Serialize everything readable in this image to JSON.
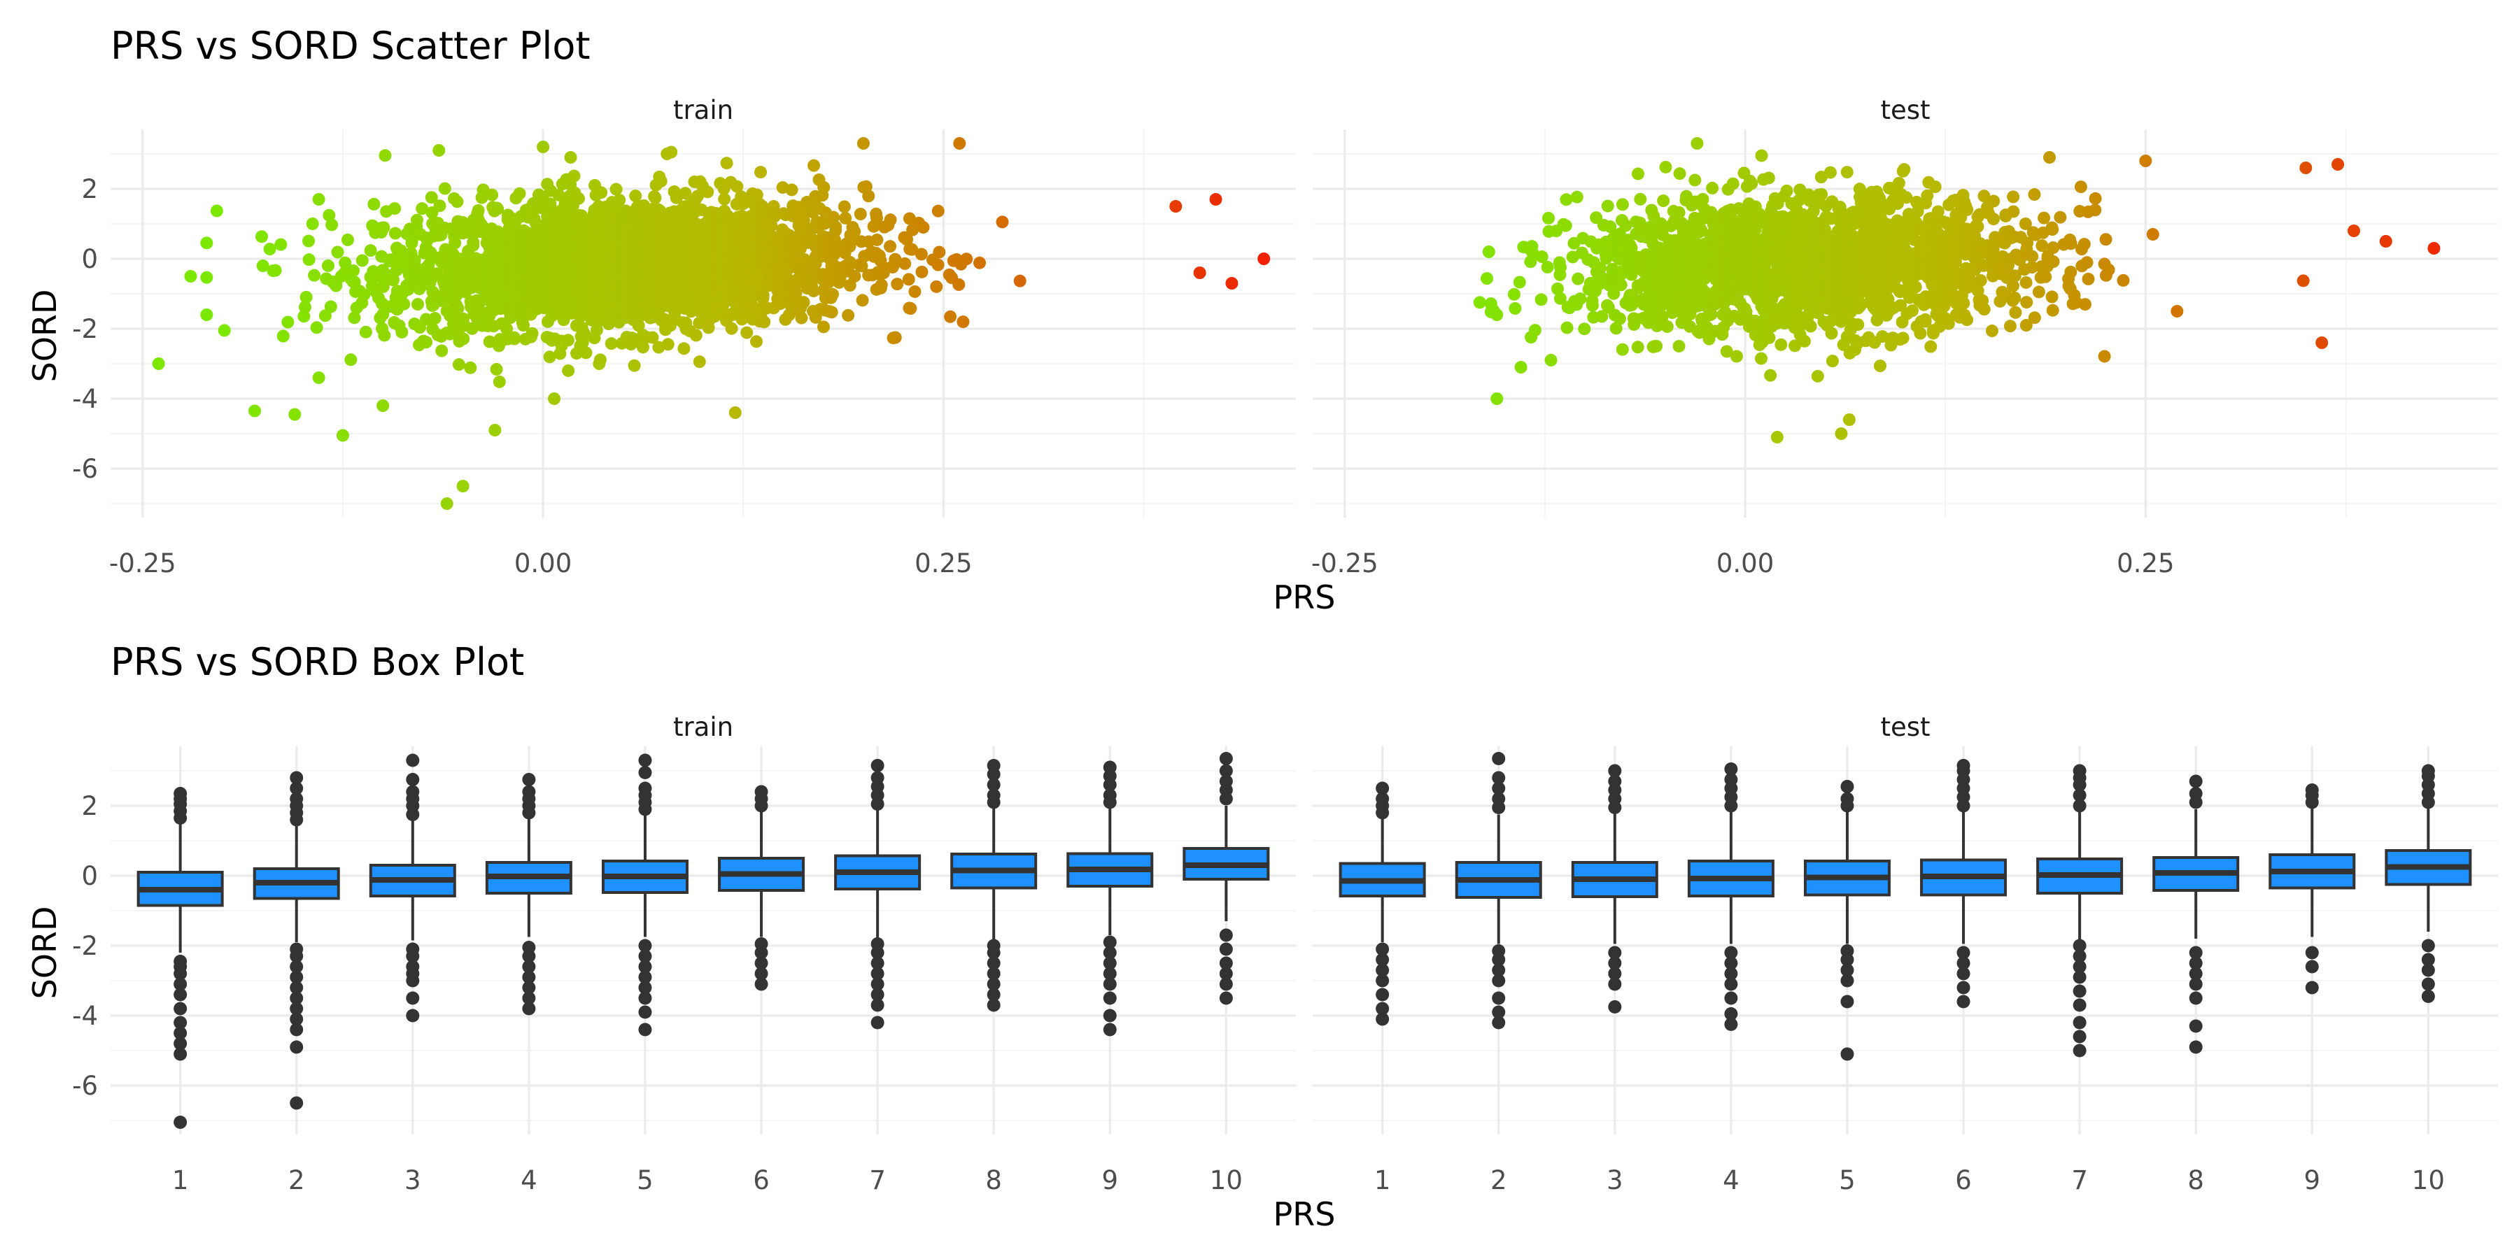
{
  "chart_data": [
    {
      "type": "scatter",
      "title": "PRS vs SORD Scatter Plot",
      "xlabel": "PRS",
      "ylabel": "SORD",
      "xlim": [
        -0.27,
        0.47
      ],
      "ylim": [
        -7.4,
        3.7
      ],
      "x_ticks": [
        "-0.25",
        "0.00",
        "0.25"
      ],
      "x_tick_values": [
        -0.25,
        0.0,
        0.25
      ],
      "y_ticks": [
        "-6",
        "-4",
        "-2",
        "0",
        "2"
      ],
      "y_tick_values": [
        -6,
        -4,
        -2,
        0,
        2
      ],
      "grid": true,
      "color_scale": {
        "low": "#7CE800",
        "mid": "#B8B800",
        "high": "#F02000",
        "range": [
          -0.2,
          0.45
        ]
      },
      "facets": [
        {
          "name": "train",
          "cloud": {
            "x_center": 0.05,
            "x_spread": 0.075,
            "slope": 2.1,
            "y_spread": 0.95,
            "n": 2600
          },
          "points": [
            {
              "x": 0.45,
              "y": 0.0
            },
            {
              "x": 0.42,
              "y": 1.7
            },
            {
              "x": 0.43,
              "y": -0.7
            },
            {
              "x": 0.41,
              "y": -0.4
            },
            {
              "x": 0.395,
              "y": 1.5
            },
            {
              "x": -0.24,
              "y": -3.0
            },
            {
              "x": -0.22,
              "y": -0.5
            },
            {
              "x": -0.21,
              "y": -1.6
            },
            {
              "x": -0.18,
              "y": -4.35
            },
            {
              "x": -0.155,
              "y": -4.45
            },
            {
              "x": -0.125,
              "y": -5.05
            },
            {
              "x": -0.06,
              "y": -7.0
            },
            {
              "x": -0.05,
              "y": -6.5
            },
            {
              "x": -0.03,
              "y": -4.9
            },
            {
              "x": 0.2,
              "y": 3.3
            },
            {
              "x": 0.26,
              "y": 3.3
            },
            {
              "x": 0.12,
              "y": -4.4
            },
            {
              "x": 0.0,
              "y": 3.2
            },
            {
              "x": -0.065,
              "y": 3.1
            },
            {
              "x": 0.08,
              "y": 3.05
            },
            {
              "x": -0.14,
              "y": 1.7
            },
            {
              "x": -0.14,
              "y": -3.4
            },
            {
              "x": -0.1,
              "y": -4.2
            }
          ]
        },
        {
          "name": "test",
          "cloud": {
            "x_center": 0.04,
            "x_spread": 0.072,
            "slope": 1.4,
            "y_spread": 0.95,
            "n": 1900
          },
          "points": [
            {
              "x": 0.43,
              "y": 0.3
            },
            {
              "x": 0.37,
              "y": 2.7
            },
            {
              "x": 0.35,
              "y": 2.6
            },
            {
              "x": 0.38,
              "y": 0.8
            },
            {
              "x": 0.36,
              "y": -2.4
            },
            {
              "x": 0.4,
              "y": 0.5
            },
            {
              "x": -0.155,
              "y": -4.0
            },
            {
              "x": 0.02,
              "y": -5.1
            },
            {
              "x": 0.06,
              "y": -5.0
            },
            {
              "x": 0.065,
              "y": -4.6
            },
            {
              "x": -0.03,
              "y": 3.3
            },
            {
              "x": 0.19,
              "y": 2.9
            },
            {
              "x": 0.25,
              "y": 2.8
            },
            {
              "x": -0.155,
              "y": -1.6
            },
            {
              "x": -0.14,
              "y": -3.1
            },
            {
              "x": -0.16,
              "y": 0.2
            }
          ]
        }
      ]
    },
    {
      "type": "box",
      "title": "PRS vs SORD Box Plot",
      "xlabel": "PRS",
      "ylabel": "SORD",
      "categories": [
        "1",
        "2",
        "3",
        "4",
        "5",
        "6",
        "7",
        "8",
        "9",
        "10"
      ],
      "ylim": [
        -7.4,
        3.7
      ],
      "y_ticks": [
        "-6",
        "-4",
        "-2",
        "0",
        "2"
      ],
      "y_tick_values": [
        -6,
        -4,
        -2,
        0,
        2
      ],
      "grid": true,
      "box_color": "#1E90FF",
      "facets": [
        {
          "name": "train",
          "boxes": [
            {
              "q1": -0.85,
              "median": -0.4,
              "q3": 0.1,
              "low": -2.2,
              "high": 1.5
            },
            {
              "q1": -0.65,
              "median": -0.2,
              "q3": 0.2,
              "low": -1.9,
              "high": 1.45
            },
            {
              "q1": -0.58,
              "median": -0.12,
              "q3": 0.3,
              "low": -1.85,
              "high": 1.6
            },
            {
              "q1": -0.5,
              "median": -0.02,
              "q3": 0.38,
              "low": -1.75,
              "high": 1.65
            },
            {
              "q1": -0.48,
              "median": -0.02,
              "q3": 0.42,
              "low": -1.75,
              "high": 1.75
            },
            {
              "q1": -0.42,
              "median": 0.05,
              "q3": 0.5,
              "low": -1.75,
              "high": 1.85
            },
            {
              "q1": -0.38,
              "median": 0.1,
              "q3": 0.57,
              "low": -1.8,
              "high": 1.9
            },
            {
              "q1": -0.35,
              "median": 0.15,
              "q3": 0.62,
              "low": -1.85,
              "high": 1.95
            },
            {
              "q1": -0.3,
              "median": 0.18,
              "q3": 0.63,
              "low": -1.7,
              "high": 1.95
            },
            {
              "q1": -0.1,
              "median": 0.3,
              "q3": 0.78,
              "low": -1.3,
              "high": 2.0
            }
          ],
          "outliers": [
            [
              -7.05,
              -5.1,
              -4.8,
              -4.5,
              -4.2,
              -3.8,
              -3.4,
              -3.1,
              -2.8,
              -2.6,
              -2.45,
              1.65,
              1.85,
              2.05,
              2.2,
              2.35
            ],
            [
              -6.5,
              -4.9,
              -4.4,
              -4.1,
              -3.8,
              -3.5,
              -3.2,
              -2.9,
              -2.6,
              -2.3,
              -2.1,
              1.6,
              1.8,
              2.0,
              2.2,
              2.5,
              2.8
            ],
            [
              -4.0,
              -3.5,
              -3.0,
              -2.8,
              -2.6,
              -2.3,
              -2.1,
              1.75,
              2.0,
              2.2,
              2.4,
              2.75,
              3.3
            ],
            [
              -3.8,
              -3.5,
              -3.2,
              -2.9,
              -2.6,
              -2.3,
              -2.05,
              1.8,
              2.0,
              2.2,
              2.4,
              2.75
            ],
            [
              -4.4,
              -3.9,
              -3.5,
              -3.2,
              -2.9,
              -2.6,
              -2.3,
              -2.0,
              1.9,
              2.1,
              2.3,
              2.5,
              2.95,
              3.3
            ],
            [
              -3.1,
              -2.8,
              -2.5,
              -2.2,
              -1.95,
              2.0,
              2.2,
              2.4
            ],
            [
              -4.2,
              -3.7,
              -3.4,
              -3.1,
              -2.8,
              -2.5,
              -2.2,
              -1.95,
              2.05,
              2.3,
              2.55,
              2.8,
              3.15
            ],
            [
              -3.7,
              -3.4,
              -3.1,
              -2.8,
              -2.5,
              -2.2,
              -2.0,
              2.1,
              2.3,
              2.6,
              2.9,
              3.15
            ],
            [
              -4.4,
              -4.0,
              -3.5,
              -3.1,
              -2.8,
              -2.5,
              -2.2,
              -1.9,
              2.1,
              2.3,
              2.6,
              2.85,
              3.1
            ],
            [
              -3.5,
              -3.1,
              -2.8,
              -2.5,
              -2.1,
              -1.7,
              2.2,
              2.45,
              2.7,
              3.0,
              3.35
            ]
          ]
        },
        {
          "name": "test",
          "boxes": [
            {
              "q1": -0.58,
              "median": -0.15,
              "q3": 0.35,
              "low": -1.9,
              "high": 1.7
            },
            {
              "q1": -0.62,
              "median": -0.12,
              "q3": 0.38,
              "low": -1.95,
              "high": 1.75
            },
            {
              "q1": -0.6,
              "median": -0.1,
              "q3": 0.38,
              "low": -1.95,
              "high": 1.8
            },
            {
              "q1": -0.58,
              "median": -0.08,
              "q3": 0.42,
              "low": -1.95,
              "high": 1.85
            },
            {
              "q1": -0.55,
              "median": -0.05,
              "q3": 0.42,
              "low": -1.95,
              "high": 1.85
            },
            {
              "q1": -0.55,
              "median": -0.02,
              "q3": 0.45,
              "low": -1.95,
              "high": 1.85
            },
            {
              "q1": -0.5,
              "median": 0.02,
              "q3": 0.48,
              "low": -1.9,
              "high": 1.9
            },
            {
              "q1": -0.42,
              "median": 0.08,
              "q3": 0.52,
              "low": -1.8,
              "high": 1.9
            },
            {
              "q1": -0.35,
              "median": 0.12,
              "q3": 0.6,
              "low": -1.75,
              "high": 1.95
            },
            {
              "q1": -0.25,
              "median": 0.25,
              "q3": 0.72,
              "low": -1.6,
              "high": 2.0
            }
          ],
          "outliers": [
            [
              -4.1,
              -3.8,
              -3.4,
              -3.0,
              -2.7,
              -2.4,
              -2.1,
              1.8,
              2.0,
              2.2,
              2.5
            ],
            [
              -4.2,
              -3.9,
              -3.5,
              -3.0,
              -2.7,
              -2.4,
              -2.15,
              1.95,
              2.2,
              2.5,
              2.8,
              3.35
            ],
            [
              -3.75,
              -3.1,
              -2.8,
              -2.5,
              -2.2,
              1.95,
              2.2,
              2.45,
              2.7,
              3.0
            ],
            [
              -4.25,
              -3.95,
              -3.5,
              -3.1,
              -2.8,
              -2.5,
              -2.2,
              2.0,
              2.25,
              2.5,
              2.75,
              3.05
            ],
            [
              -5.1,
              -3.6,
              -3.0,
              -2.7,
              -2.4,
              -2.15,
              2.0,
              2.2,
              2.55
            ],
            [
              -3.6,
              -3.2,
              -2.8,
              -2.5,
              -2.2,
              2.0,
              2.25,
              2.5,
              2.75,
              3.0,
              3.15
            ],
            [
              -5.0,
              -4.6,
              -4.2,
              -3.7,
              -3.3,
              -2.9,
              -2.6,
              -2.3,
              -2.0,
              2.0,
              2.3,
              2.6,
              2.8,
              3.0
            ],
            [
              -4.9,
              -4.3,
              -3.5,
              -3.1,
              -2.8,
              -2.5,
              -2.2,
              2.1,
              2.35,
              2.7
            ],
            [
              -3.2,
              -2.6,
              -2.2,
              2.1,
              2.3,
              2.45
            ],
            [
              -3.45,
              -3.1,
              -2.7,
              -2.4,
              -2.0,
              2.1,
              2.35,
              2.6,
              2.85,
              3.0
            ]
          ]
        }
      ]
    }
  ]
}
